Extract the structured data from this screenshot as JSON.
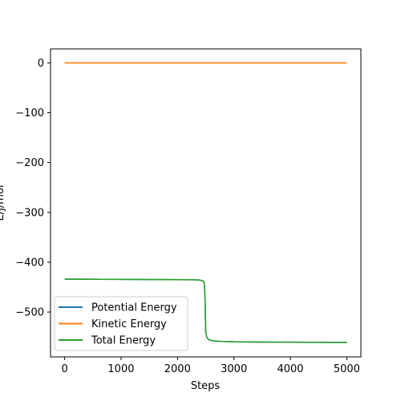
{
  "chart_data": {
    "type": "line",
    "title": "",
    "xlabel": "Steps",
    "ylabel": "E/J/mol",
    "xlim": [
      -250,
      5250
    ],
    "ylim": [
      -590,
      28
    ],
    "xticks": [
      0,
      1000,
      2000,
      3000,
      4000,
      5000
    ],
    "yticks": [
      0,
      -100,
      -200,
      -300,
      -400,
      -500
    ],
    "xtick_labels": [
      "0",
      "1000",
      "2000",
      "3000",
      "4000",
      "5000"
    ],
    "ytick_labels": [
      "0",
      "−100",
      "−200",
      "−300",
      "−400",
      "−500"
    ],
    "grid": false,
    "legend_position": "lower-left",
    "series": [
      {
        "name": "Potential Energy",
        "color": "#1f77b4",
        "x": [
          0,
          500,
          1000,
          1500,
          2000,
          2300,
          2400,
          2450,
          2470,
          2480,
          2490,
          2500,
          2520,
          2550,
          2600,
          2700,
          2800,
          3000,
          3500,
          4000,
          4500,
          5000
        ],
        "y": [
          -434,
          -434.2,
          -434.5,
          -434.8,
          -435,
          -435.3,
          -436,
          -437.5,
          -440,
          -450,
          -480,
          -540,
          -551,
          -555,
          -557,
          -558.5,
          -559,
          -559.8,
          -560.3,
          -560.6,
          -560.8,
          -561
        ]
      },
      {
        "name": "Kinetic Energy",
        "color": "#ff7f0e",
        "x": [
          0,
          1000,
          2000,
          3000,
          4000,
          5000
        ],
        "y": [
          0,
          0,
          0,
          0,
          0,
          0
        ]
      },
      {
        "name": "Total Energy",
        "color": "#2ca02c",
        "x": [
          0,
          500,
          1000,
          1500,
          2000,
          2300,
          2400,
          2450,
          2470,
          2480,
          2490,
          2500,
          2520,
          2550,
          2600,
          2700,
          2800,
          3000,
          3500,
          4000,
          4500,
          5000
        ],
        "y": [
          -434,
          -434.2,
          -434.5,
          -434.8,
          -435,
          -435.3,
          -436,
          -437.5,
          -440,
          -450,
          -480,
          -540,
          -551,
          -555,
          -557,
          -558.5,
          -559,
          -559.8,
          -560.3,
          -560.6,
          -560.8,
          -561
        ]
      }
    ]
  }
}
